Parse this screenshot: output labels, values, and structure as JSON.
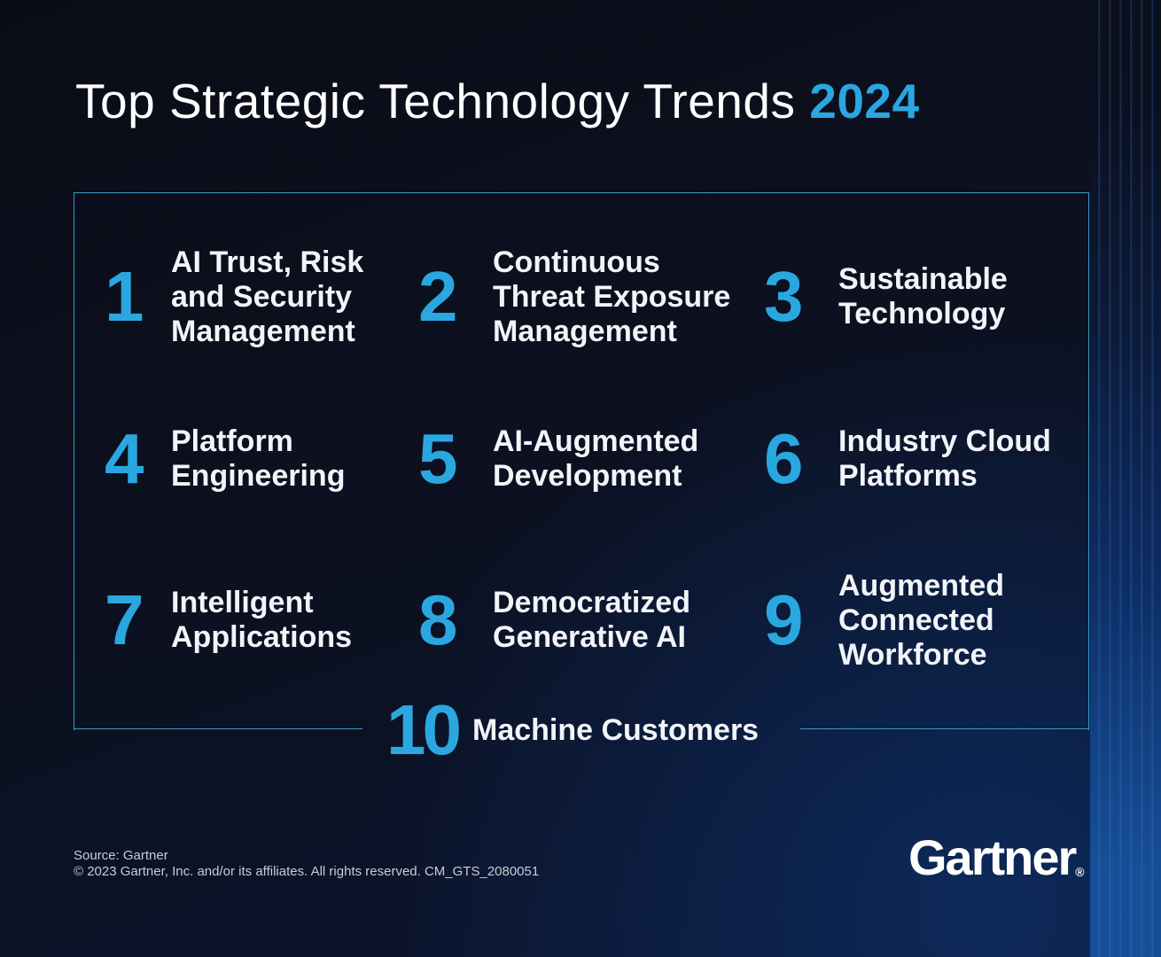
{
  "header": {
    "title": "Top Strategic Technology Trends",
    "year": "2024"
  },
  "trends": [
    {
      "number": 1,
      "lines": [
        "AI Trust, Risk",
        "and Security",
        "Management"
      ]
    },
    {
      "number": 2,
      "lines": [
        "Continuous",
        "Threat Exposure",
        "Management"
      ]
    },
    {
      "number": 3,
      "lines": [
        "Sustainable",
        "Technology"
      ]
    },
    {
      "number": 4,
      "lines": [
        "Platform",
        "Engineering"
      ]
    },
    {
      "number": 5,
      "lines": [
        "AI-Augmented",
        "Development"
      ]
    },
    {
      "number": 6,
      "lines": [
        "Industry Cloud",
        "Platforms"
      ]
    },
    {
      "number": 7,
      "lines": [
        "Intelligent",
        "Applications"
      ]
    },
    {
      "number": 8,
      "lines": [
        "Democratized",
        "Generative AI"
      ]
    },
    {
      "number": 9,
      "lines": [
        "Augmented",
        "Connected",
        "Workforce"
      ]
    },
    {
      "number": 10,
      "lines": [
        "Machine Customers"
      ]
    }
  ],
  "footer": {
    "source": "Source: Gartner",
    "copyright": "© 2023 Gartner, Inc. and/or its affiliates. All rights reserved. CM_GTS_2080051"
  },
  "logo": {
    "text": "Gartner",
    "mark": "®"
  }
}
